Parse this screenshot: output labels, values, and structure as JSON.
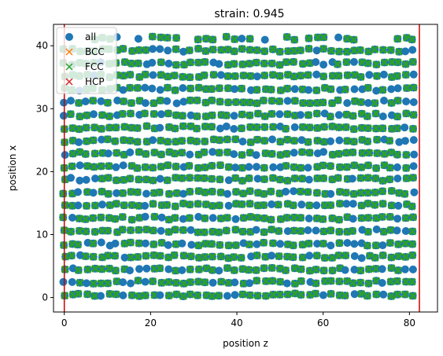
{
  "chart_data": {
    "type": "scatter",
    "title": "strain: 0.945",
    "xlabel": "position z",
    "ylabel": "position x",
    "xlim": [
      -2.5,
      86.5
    ],
    "ylim": [
      -2.3,
      43.4
    ],
    "xticks": [
      0,
      20,
      40,
      60,
      80
    ],
    "yticks": [
      0,
      10,
      20,
      30,
      40
    ],
    "grid": false,
    "legend_position": "top-left",
    "legend": [
      {
        "label": "all",
        "marker": "circle",
        "color": "#1f77b4"
      },
      {
        "label": "BCC",
        "marker": "x",
        "color": "#ff7f0e"
      },
      {
        "label": "FCC",
        "marker": "x",
        "color": "#2ca02c"
      },
      {
        "label": "HCP",
        "marker": "x",
        "color": "#d62728"
      }
    ],
    "vertical_lines": [
      {
        "x": 0.0,
        "color": "#cc0000"
      },
      {
        "x": 82.3,
        "color": "#cc0000"
      }
    ],
    "lattice": {
      "x_min": 0.0,
      "x_max": 82.3,
      "x_step": 1.72,
      "row_values": [
        0.4,
        2.45,
        4.5,
        6.5,
        8.5,
        10.6,
        12.6,
        14.7,
        16.7,
        18.8,
        20.8,
        22.9,
        24.9,
        27.0,
        29.0,
        31.1,
        33.1,
        35.2,
        37.2,
        39.3,
        41.2
      ],
      "top_row_sparse": true
    },
    "series": [
      {
        "name": "all",
        "color": "#1f77b4",
        "marker": "circle"
      },
      {
        "name": "FCC",
        "color": "#2ca02c",
        "marker": "x"
      }
    ]
  }
}
